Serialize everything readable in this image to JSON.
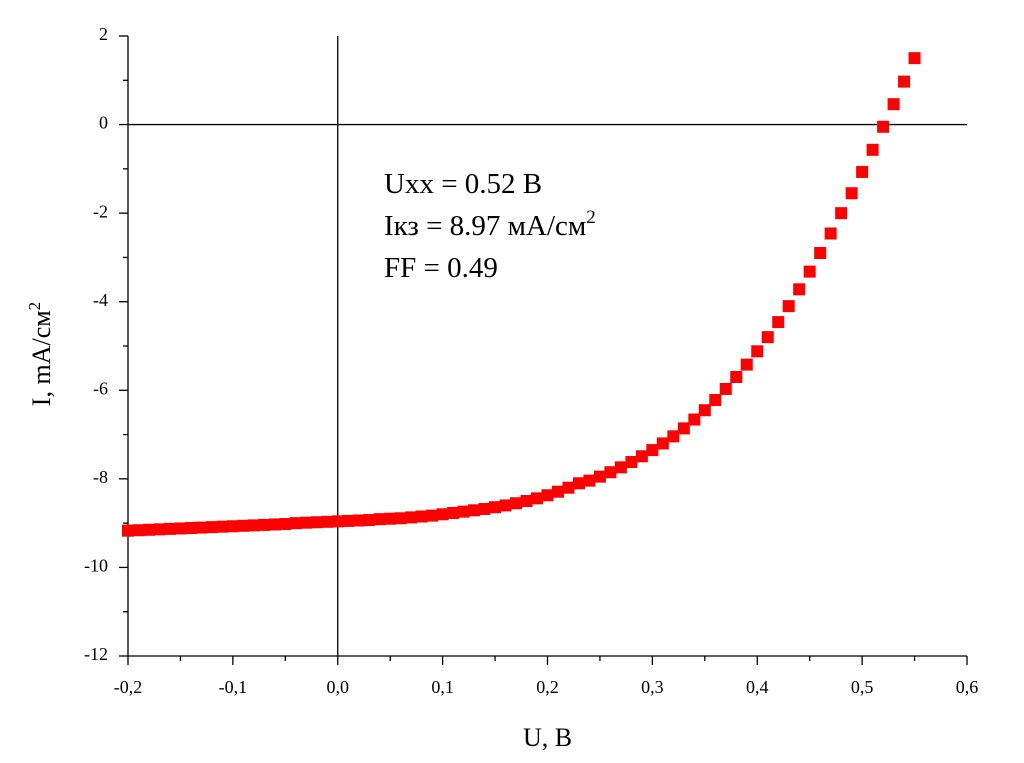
{
  "chart_data": {
    "type": "scatter",
    "xlabel": "U, B",
    "ylabel": {
      "text": "I, mA/см",
      "sup": "2"
    },
    "annotations": [
      {
        "text": "Uxx = 0.52 B"
      },
      {
        "text": "Iкз = 8.97 мА/см",
        "sup": "2"
      },
      {
        "text": "FF = 0.49"
      }
    ],
    "xlim": [
      -0.2,
      0.6
    ],
    "xticks": [
      {
        "value": -0.2,
        "label": "-0,2"
      },
      {
        "value": -0.1,
        "label": "-0,1"
      },
      {
        "value": 0,
        "label": "0,0"
      },
      {
        "value": 0.1,
        "label": "0,1"
      },
      {
        "value": 0.2,
        "label": "0,2"
      },
      {
        "value": 0.3,
        "label": "0,3"
      },
      {
        "value": 0.4,
        "label": "0,4"
      },
      {
        "value": 0.5,
        "label": "0,5"
      },
      {
        "value": 0.6,
        "label": "0,6"
      }
    ],
    "ylim": [
      -12,
      2
    ],
    "yticks": [
      -12,
      -10,
      -8,
      -6,
      -4,
      -2,
      0,
      2
    ],
    "grid": false,
    "zero_lines": true,
    "minor_ticks": true,
    "marker": "square",
    "color": "#ff0000",
    "x": [
      -0.2,
      -0.19,
      -0.18,
      -0.17,
      -0.16,
      -0.15,
      -0.14,
      -0.13,
      -0.12,
      -0.11,
      -0.1,
      -0.09,
      -0.08,
      -0.07,
      -0.06,
      -0.05,
      -0.04,
      -0.03,
      -0.02,
      -0.01,
      0,
      0.01,
      0.02,
      0.03,
      0.04,
      0.05,
      0.06,
      0.07,
      0.08,
      0.09,
      0.1,
      0.11,
      0.12,
      0.13,
      0.14,
      0.15,
      0.16,
      0.17,
      0.18,
      0.19,
      0.2,
      0.21,
      0.22,
      0.23,
      0.24,
      0.25,
      0.26,
      0.27,
      0.28,
      0.29,
      0.3,
      0.31,
      0.32,
      0.33,
      0.34,
      0.35,
      0.36,
      0.37,
      0.38,
      0.39,
      0.4,
      0.41,
      0.42,
      0.43,
      0.44,
      0.45,
      0.46,
      0.47,
      0.48,
      0.49,
      0.5,
      0.51,
      0.52,
      0.53,
      0.54,
      0.55
    ],
    "values": [
      -9.17,
      -9.16,
      -9.15,
      -9.14,
      -9.13,
      -9.12,
      -9.11,
      -9.1,
      -9.09,
      -9.08,
      -9.07,
      -9.06,
      -9.05,
      -9.04,
      -9.03,
      -9.02,
      -9.0,
      -8.99,
      -8.98,
      -8.97,
      -8.96,
      -8.95,
      -8.94,
      -8.93,
      -8.91,
      -8.9,
      -8.89,
      -8.87,
      -8.85,
      -8.83,
      -8.8,
      -8.77,
      -8.74,
      -8.71,
      -8.68,
      -8.64,
      -8.6,
      -8.55,
      -8.5,
      -8.44,
      -8.37,
      -8.29,
      -8.2,
      -8.1,
      -8.04,
      -7.95,
      -7.85,
      -7.74,
      -7.62,
      -7.49,
      -7.35,
      -7.2,
      -7.04,
      -6.86,
      -6.66,
      -6.45,
      -6.22,
      -5.97,
      -5.7,
      -5.42,
      -5.12,
      -4.8,
      -4.46,
      -4.1,
      -3.72,
      -3.32,
      -2.9,
      -2.46,
      -2.0,
      -1.55,
      -1.07,
      -0.57,
      -0.05,
      0.46,
      0.97,
      1.5
    ]
  }
}
